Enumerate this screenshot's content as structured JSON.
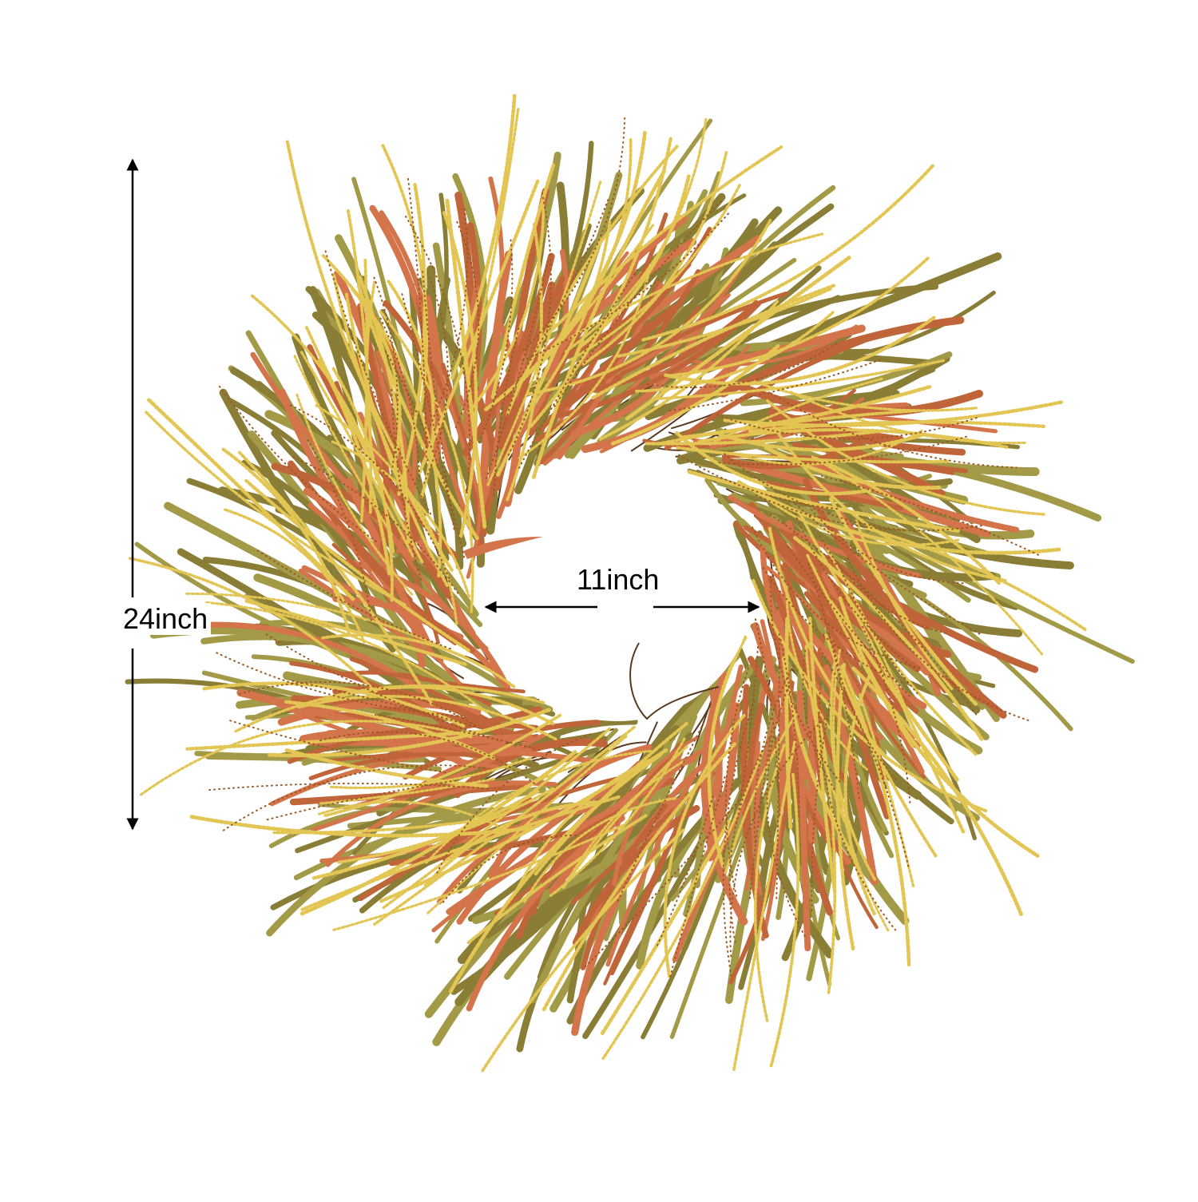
{
  "image": {
    "subject": "wreath-photo",
    "background_color": "#ffffff",
    "colors": {
      "leaf_olive": "#a39a48",
      "leaf_dark_olive": "#8a7d35",
      "leaf_orange": "#d3744a",
      "leaf_rust": "#c0643a",
      "seed_gold": "#e2c553",
      "seed_speck": "#9a5a24",
      "stem_dark": "#5a3a1e"
    }
  },
  "dimensions": {
    "outer_label": "24inch",
    "inner_label": "11inch"
  }
}
